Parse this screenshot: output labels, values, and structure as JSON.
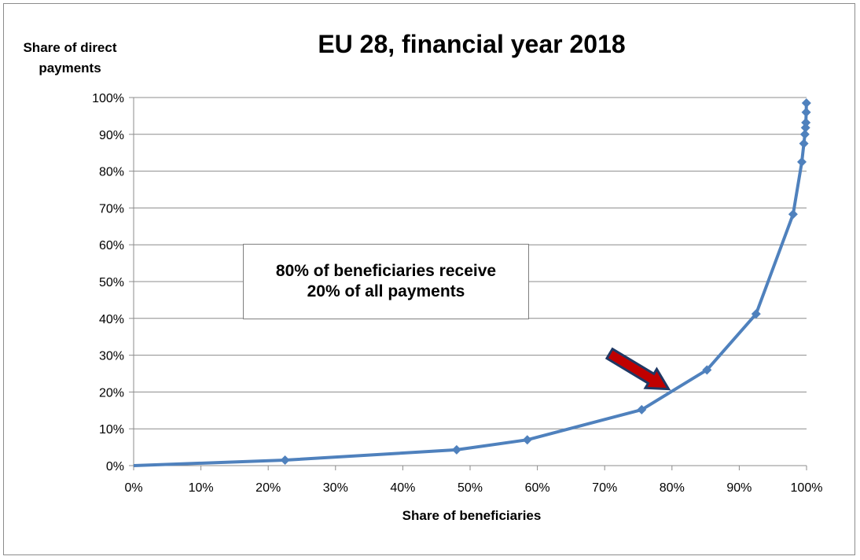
{
  "chart_data": {
    "type": "line",
    "title": "EU 28, financial year 2018",
    "xlabel": "Share of beneficiaries",
    "ylabel": "Share of direct payments",
    "xlim": [
      0,
      100
    ],
    "ylim": [
      0,
      100
    ],
    "x_ticks": [
      "0%",
      "10%",
      "20%",
      "30%",
      "40%",
      "50%",
      "60%",
      "70%",
      "80%",
      "90%",
      "100%"
    ],
    "y_ticks": [
      "0%",
      "10%",
      "20%",
      "30%",
      "40%",
      "50%",
      "60%",
      "70%",
      "80%",
      "90%",
      "100%"
    ],
    "grid": true,
    "series": [
      {
        "color": "#4f81bd",
        "marker": "diamond",
        "points": [
          [
            0,
            0
          ],
          [
            22.5,
            1.5
          ],
          [
            48,
            4.3
          ],
          [
            58.5,
            7
          ],
          [
            75.5,
            15.2
          ],
          [
            85.2,
            26
          ],
          [
            92.5,
            41.2
          ],
          [
            98,
            68.3
          ],
          [
            99.3,
            82.5
          ],
          [
            99.6,
            87.5
          ],
          [
            99.75,
            90
          ],
          [
            99.85,
            91.8
          ],
          [
            99.9,
            93.2
          ],
          [
            99.95,
            96
          ],
          [
            99.98,
            98.5
          ]
        ]
      }
    ],
    "annotation": "80% of beneficiaries receive 20% of all payments",
    "arrow_color": "#c00000"
  }
}
